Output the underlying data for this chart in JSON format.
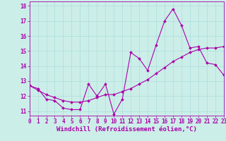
{
  "title": "",
  "xlabel": "Windchill (Refroidissement éolien,°C)",
  "ylabel": "",
  "background_color": "#cceee8",
  "line_color": "#aa00aa",
  "grid_color": "#aadddd",
  "x_data": [
    0,
    1,
    2,
    3,
    4,
    5,
    6,
    7,
    8,
    9,
    10,
    11,
    12,
    13,
    14,
    15,
    16,
    17,
    18,
    19,
    20,
    21,
    22,
    23
  ],
  "y_jagged": [
    12.7,
    12.5,
    11.8,
    11.7,
    11.2,
    11.1,
    11.1,
    12.8,
    12.0,
    12.8,
    10.8,
    11.8,
    14.9,
    14.5,
    13.7,
    15.4,
    17.0,
    17.8,
    16.7,
    15.2,
    15.3,
    14.2,
    14.1,
    13.4
  ],
  "y_smooth": [
    12.7,
    12.4,
    12.1,
    11.9,
    11.7,
    11.6,
    11.6,
    11.7,
    11.9,
    12.1,
    12.1,
    12.3,
    12.5,
    12.8,
    13.1,
    13.5,
    13.9,
    14.3,
    14.6,
    14.9,
    15.1,
    15.2,
    15.2,
    15.3
  ],
  "xlim": [
    0,
    23
  ],
  "ylim": [
    10.7,
    18.3
  ],
  "yticks": [
    11,
    12,
    13,
    14,
    15,
    16,
    17,
    18
  ],
  "xticks": [
    0,
    1,
    2,
    3,
    4,
    5,
    6,
    7,
    8,
    9,
    10,
    11,
    12,
    13,
    14,
    15,
    16,
    17,
    18,
    19,
    20,
    21,
    22,
    23
  ],
  "fontsize_ticks": 5.5,
  "fontsize_xlabel": 6.5,
  "marker": "D",
  "markersize": 2.0,
  "linewidth": 0.8
}
